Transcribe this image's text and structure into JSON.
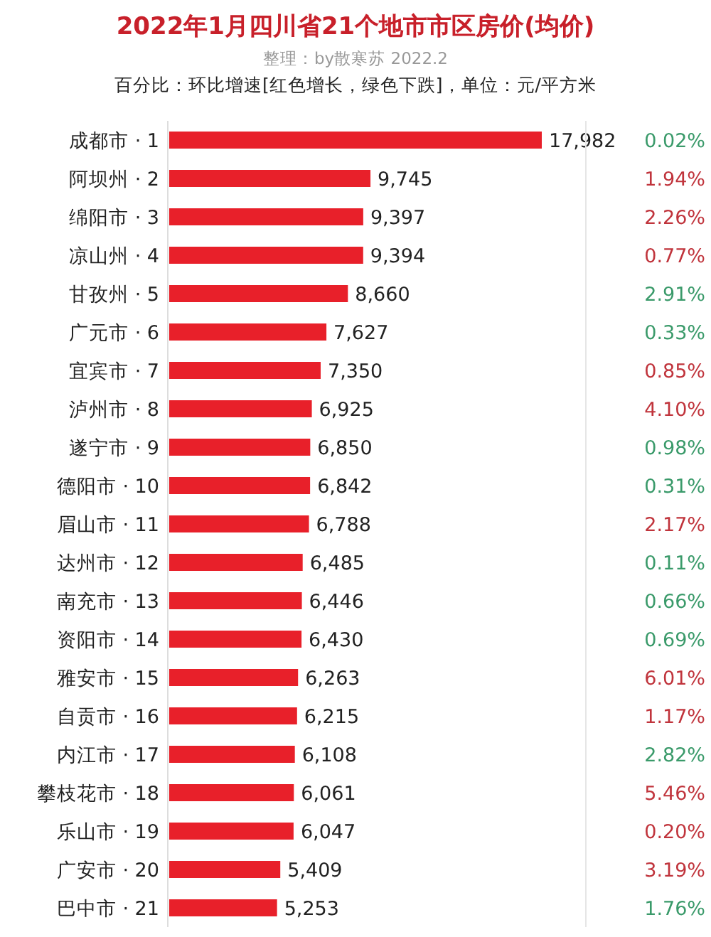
{
  "chart_data": [
    {
      "type": "bar",
      "orientation": "horizontal",
      "title": "2022年1月四川省21个地市市区房价(均价)",
      "subtitle": "整理：by散寒苏 2022.2",
      "annotations": [
        "百分比：环比增速[红色增长，绿色下跌]，单位：元/平方米"
      ],
      "categories": [
        "成都市 · 1",
        "阿坝州 · 2",
        "绵阳市 · 3",
        "凉山州 · 4",
        "甘孜州 · 5",
        "广元市 · 6",
        "宜宾市 · 7",
        "泸州市 · 8",
        "遂宁市 · 9",
        "德阳市 · 10",
        "眉山市 · 11",
        "达州市 · 12",
        "南充市 · 13",
        "资阳市 · 14",
        "雅安市 · 15",
        "自贡市 · 16",
        "内江市 · 17",
        "攀枝花市 · 18",
        "乐山市 · 19",
        "广安市 · 20",
        "巴中市 · 21"
      ],
      "values": [
        17982,
        9745,
        9397,
        9394,
        8660,
        7627,
        7350,
        6925,
        6850,
        6842,
        6788,
        6485,
        6446,
        6430,
        6263,
        6215,
        6108,
        6061,
        6047,
        5409,
        5253
      ],
      "value_labels": [
        "17,982",
        "9,745",
        "9,397",
        "9,394",
        "8,660",
        "7,627",
        "7,350",
        "6,925",
        "6,850",
        "6,842",
        "6,788",
        "6,485",
        "6,446",
        "6,430",
        "6,263",
        "6,215",
        "6,108",
        "6,061",
        "6,047",
        "5,409",
        "5,253"
      ],
      "color": "#e8202a"
    },
    {
      "type": "other",
      "categories": [
        null,
        null,
        null,
        null,
        null,
        null,
        null,
        null,
        null,
        null,
        null,
        null,
        null,
        null,
        null,
        null,
        null,
        null,
        null,
        null,
        null
      ],
      "values": [
        0.02,
        1.94,
        2.26,
        0.77,
        2.91,
        0.33,
        0.85,
        4.1,
        0.98,
        0.31,
        2.17,
        0.11,
        0.66,
        0.69,
        6.01,
        1.17,
        2.82,
        5.46,
        0.2,
        3.19,
        1.76
      ],
      "value_labels": [
        "0.02%",
        "1.94%",
        "2.26%",
        "0.77%",
        "2.91%",
        "0.33%",
        "0.85%",
        "4.10%",
        "0.98%",
        "0.31%",
        "2.17%",
        "0.11%",
        "0.66%",
        "0.69%",
        "6.01%",
        "1.17%",
        "2.82%",
        "5.46%",
        "0.20%",
        "3.19%",
        "1.76%"
      ],
      "colors": [
        "#3a9a6a",
        "#c0343c",
        "#c0343c",
        "#c0343c",
        "#3a9a6a",
        "#3a9a6a",
        "#c0343c",
        "#c0343c",
        "#3a9a6a",
        "#3a9a6a",
        "#c0343c",
        "#3a9a6a",
        "#3a9a6a",
        "#3a9a6a",
        "#c0343c",
        "#c0343c",
        "#3a9a6a",
        "#c0343c",
        "#c0343c",
        "#c0343c",
        "#3a9a6a"
      ]
    }
  ]
}
